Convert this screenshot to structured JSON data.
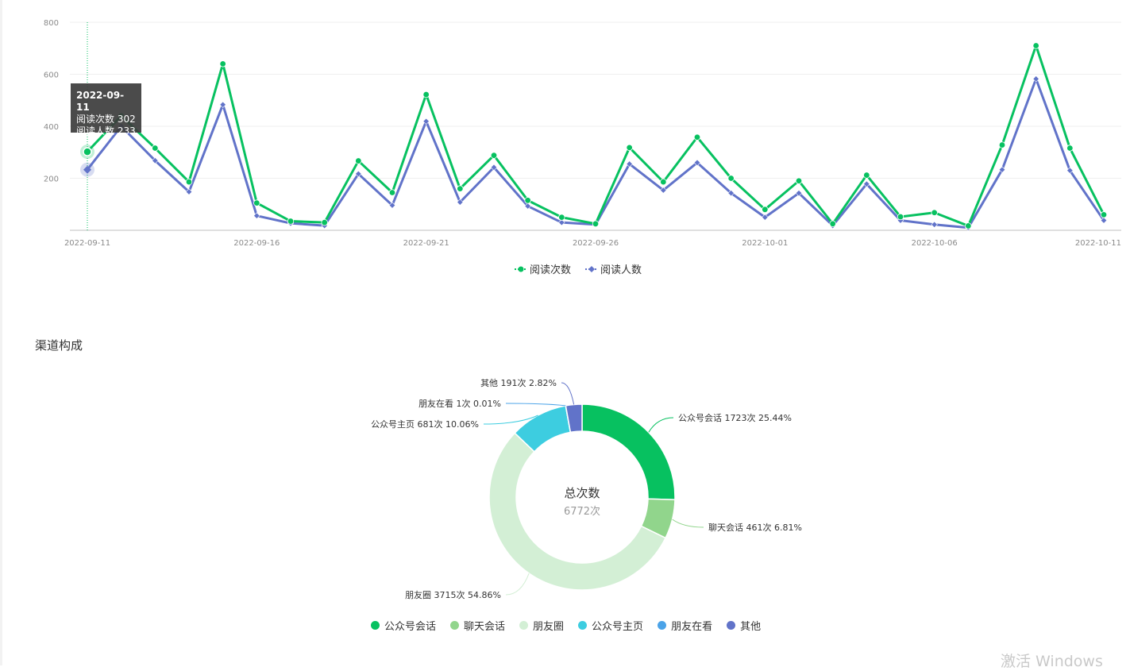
{
  "line_chart": {
    "y_ticks": [
      "200",
      "400",
      "600",
      "800"
    ],
    "x_ticks": [
      "2022-09-11",
      "2022-09-16",
      "2022-09-21",
      "2022-09-26",
      "2022-10-01",
      "2022-10-06",
      "2022-10-11"
    ],
    "legend": [
      {
        "label": "阅读次数",
        "color": "#07c160"
      },
      {
        "label": "阅读人数",
        "color": "#6173c9"
      }
    ],
    "tooltip": {
      "date": "2022-09-11",
      "line1": "阅读次数 302",
      "line2": "阅读人数 233"
    }
  },
  "section_title": "渠道构成",
  "donut": {
    "center_title": "总次数",
    "center_value": "6772次",
    "labels": [
      "公众号会话 1723次 25.44%",
      "聊天会话 461次 6.81%",
      "朋友圈 3715次 54.86%",
      "公众号主页 681次 10.06%",
      "朋友在看 1次 0.01%",
      "其他 191次 2.82%"
    ],
    "legend": [
      {
        "label": "公众号会话",
        "color": "#07c160"
      },
      {
        "label": "聊天会话",
        "color": "#91d58c"
      },
      {
        "label": "朋友圈",
        "color": "#d3efd5"
      },
      {
        "label": "公众号主页",
        "color": "#3dcde0"
      },
      {
        "label": "朋友在看",
        "color": "#4ba3e8"
      },
      {
        "label": "其他",
        "color": "#6173c9"
      }
    ]
  },
  "watermark": "激活 Windows",
  "chart_data": [
    {
      "type": "line",
      "x": [
        "2022-09-11",
        "2022-09-12",
        "2022-09-13",
        "2022-09-14",
        "2022-09-15",
        "2022-09-16",
        "2022-09-17",
        "2022-09-18",
        "2022-09-19",
        "2022-09-20",
        "2022-09-21",
        "2022-09-22",
        "2022-09-23",
        "2022-09-24",
        "2022-09-25",
        "2022-09-26",
        "2022-09-27",
        "2022-09-28",
        "2022-09-29",
        "2022-09-30",
        "2022-10-01",
        "2022-10-02",
        "2022-10-03",
        "2022-10-04",
        "2022-10-05",
        "2022-10-06",
        "2022-10-07",
        "2022-10-08",
        "2022-10-09",
        "2022-10-10",
        "2022-10-11"
      ],
      "series": [
        {
          "name": "阅读次数",
          "color": "#07c160",
          "values": [
            302,
            440,
            316,
            186,
            640,
            105,
            35,
            30,
            267,
            145,
            522,
            160,
            288,
            115,
            50,
            25,
            318,
            186,
            358,
            200,
            80,
            190,
            25,
            212,
            52,
            68,
            17,
            328,
            710,
            316,
            60
          ]
        },
        {
          "name": "阅读人数",
          "color": "#6173c9",
          "values": [
            233,
            400,
            268,
            148,
            483,
            56,
            27,
            18,
            217,
            96,
            419,
            108,
            242,
            93,
            30,
            22,
            255,
            154,
            260,
            143,
            50,
            143,
            18,
            178,
            38,
            22,
            10,
            233,
            582,
            230,
            38
          ]
        }
      ],
      "ylim": [
        0,
        800
      ],
      "grid": true,
      "legend_position": "bottom-center"
    },
    {
      "type": "pie",
      "categories": [
        "公众号会话",
        "聊天会话",
        "朋友圈",
        "公众号主页",
        "朋友在看",
        "其他"
      ],
      "values": [
        1723,
        461,
        3715,
        681,
        1,
        191
      ],
      "percentages": [
        25.44,
        6.81,
        54.86,
        10.06,
        0.01,
        2.82
      ],
      "colors": [
        "#07c160",
        "#91d58c",
        "#d3efd5",
        "#3dcde0",
        "#4ba3e8",
        "#6173c9"
      ],
      "donut": true,
      "legend_position": "bottom-center"
    }
  ]
}
